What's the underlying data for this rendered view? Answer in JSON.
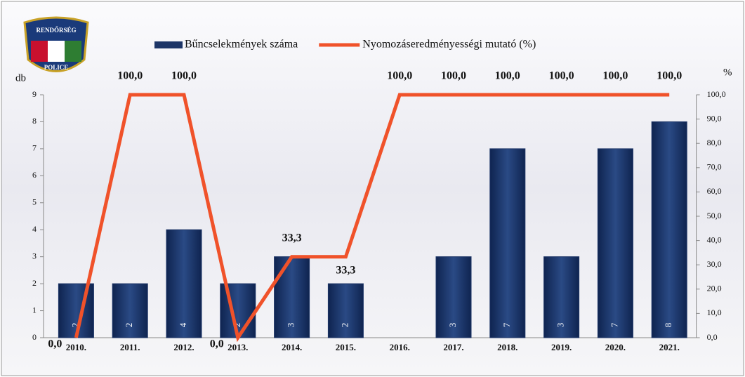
{
  "logo": {
    "top": "RENDŐRSÉG",
    "bottom": "POLICE"
  },
  "chart_data": {
    "type": "bar-line",
    "categories": [
      "2010.",
      "2011.",
      "2012.",
      "2013.",
      "2014.",
      "2015.",
      "2016.",
      "2017.",
      "2018.",
      "2019.",
      "2020.",
      "2021."
    ],
    "series": [
      {
        "name": "Bűncselekmények száma",
        "type": "bar",
        "color": "#1d3567",
        "values": [
          2,
          2,
          4,
          2,
          3,
          2,
          null,
          3,
          7,
          3,
          7,
          8
        ]
      },
      {
        "name": "Nyomozáseredményességi mutató (%)",
        "type": "line",
        "axis": "y2",
        "color": "#f0522a",
        "values": [
          0,
          100,
          100,
          0,
          33.3,
          33.3,
          100,
          100,
          100,
          100,
          100,
          100
        ],
        "value_labels": [
          "0,0",
          "100,0",
          "100,0",
          "0,0",
          "33,3",
          "33,3",
          "100,0",
          "100,0",
          "100,0",
          "100,0",
          "100,0",
          "100,0"
        ]
      }
    ],
    "y_label": "db",
    "y2_label": "%",
    "ylim": [
      0,
      9
    ],
    "yticks": [
      0,
      1,
      2,
      3,
      4,
      5,
      6,
      7,
      8,
      9
    ],
    "y2lim": [
      0,
      100
    ],
    "y2ticks": [
      {
        "value": 0,
        "label": "0,0"
      },
      {
        "value": 10,
        "label": "10,0"
      },
      {
        "value": 20,
        "label": "20,0"
      },
      {
        "value": 30,
        "label": "30,0"
      },
      {
        "value": 40,
        "label": "40,0"
      },
      {
        "value": 50,
        "label": "50,0"
      },
      {
        "value": 60,
        "label": "60,0"
      },
      {
        "value": 70,
        "label": "70,0"
      },
      {
        "value": 80,
        "label": "80,0"
      },
      {
        "value": 90,
        "label": "90,0"
      },
      {
        "value": 100,
        "label": "100,0"
      }
    ]
  }
}
